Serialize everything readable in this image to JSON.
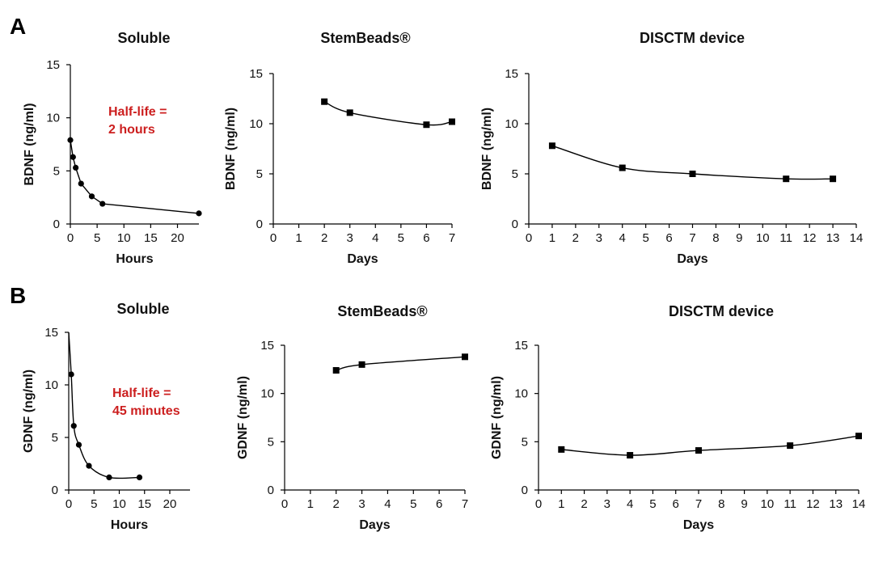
{
  "panels": [
    {
      "letter": "A"
    },
    {
      "letter": "B"
    }
  ],
  "chart_data": [
    {
      "type": "line",
      "panel": "A",
      "title": "Soluble",
      "xlabel": "Hours",
      "ylabel": "BDNF (ng/ml)",
      "xlim": [
        0,
        24
      ],
      "ylim": [
        0,
        15
      ],
      "xticks": [
        0,
        5,
        10,
        15,
        20
      ],
      "yticks": [
        0,
        5,
        10,
        15
      ],
      "marker": "circle",
      "curve": "straight",
      "annotation": [
        "Half-life =",
        "2 hours"
      ],
      "x": [
        0,
        0.5,
        1,
        2,
        4,
        6,
        24
      ],
      "y": [
        7.9,
        6.3,
        5.3,
        3.8,
        2.6,
        1.9,
        1.0
      ]
    },
    {
      "type": "line",
      "panel": "A",
      "title": "StemBeads®",
      "xlabel": "Days",
      "ylabel": "BDNF (ng/ml)",
      "xlim": [
        0,
        7
      ],
      "ylim": [
        0,
        15
      ],
      "xticks": [
        0,
        1,
        2,
        3,
        4,
        5,
        6,
        7
      ],
      "yticks": [
        0,
        5,
        10,
        15
      ],
      "marker": "square",
      "curve": "smooth",
      "x": [
        2,
        3,
        6,
        7
      ],
      "y": [
        12.2,
        11.1,
        9.9,
        10.2
      ]
    },
    {
      "type": "line",
      "panel": "A",
      "title": "DISCTM device",
      "xlabel": "Days",
      "ylabel": "BDNF (ng/ml)",
      "xlim": [
        0,
        14
      ],
      "ylim": [
        0,
        15
      ],
      "xticks": [
        0,
        1,
        2,
        3,
        4,
        5,
        6,
        7,
        8,
        9,
        10,
        11,
        12,
        13,
        14
      ],
      "yticks": [
        0,
        5,
        10,
        15
      ],
      "marker": "square",
      "curve": "smooth",
      "x": [
        1,
        4,
        7,
        11,
        13
      ],
      "y": [
        7.8,
        5.6,
        5.0,
        4.5,
        4.5
      ]
    },
    {
      "type": "line",
      "panel": "B",
      "title": "Soluble",
      "xlabel": "Hours",
      "ylabel": "GDNF (ng/ml)",
      "xlim": [
        0,
        24
      ],
      "ylim": [
        0,
        15
      ],
      "xticks": [
        0,
        5,
        10,
        15,
        20
      ],
      "yticks": [
        0,
        5,
        10,
        15
      ],
      "marker": "circle",
      "curve": "smooth",
      "annotation": [
        "Half-life =",
        "45 minutes"
      ],
      "lead_in": {
        "x": 0,
        "y": 15
      },
      "x": [
        0.5,
        1,
        2,
        4,
        8,
        14
      ],
      "y": [
        11.0,
        6.1,
        4.3,
        2.3,
        1.2,
        1.2
      ]
    },
    {
      "type": "line",
      "panel": "B",
      "title": "StemBeads®",
      "xlabel": "Days",
      "ylabel": "GDNF (ng/ml)",
      "xlim": [
        0,
        7
      ],
      "ylim": [
        0,
        15
      ],
      "xticks": [
        0,
        1,
        2,
        3,
        4,
        5,
        6,
        7
      ],
      "yticks": [
        0,
        5,
        10,
        15
      ],
      "marker": "square",
      "curve": "smooth",
      "x": [
        2,
        3,
        7
      ],
      "y": [
        12.4,
        13.0,
        13.8
      ]
    },
    {
      "type": "line",
      "panel": "B",
      "title": "DISCTM device",
      "xlabel": "Days",
      "ylabel": "GDNF (ng/ml)",
      "xlim": [
        0,
        14
      ],
      "ylim": [
        0,
        15
      ],
      "xticks": [
        0,
        1,
        2,
        3,
        4,
        5,
        6,
        7,
        8,
        9,
        10,
        11,
        12,
        13,
        14
      ],
      "yticks": [
        0,
        5,
        10,
        15
      ],
      "marker": "square",
      "curve": "smooth",
      "x": [
        1,
        4,
        7,
        11,
        14
      ],
      "y": [
        4.2,
        3.6,
        4.1,
        4.6,
        5.6
      ]
    }
  ]
}
